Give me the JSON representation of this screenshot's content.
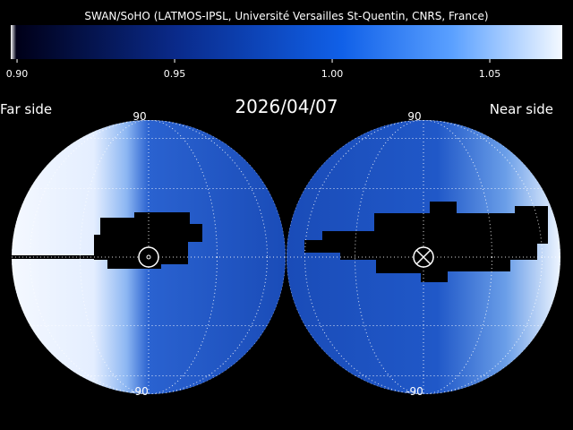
{
  "header": {
    "title": "SWAN/SoHO (LATMOS-IPSL, Université Versailles St-Quentin, CNRS, France)",
    "date": "2026/04/07"
  },
  "colorbar": {
    "range": [
      0.898,
      1.073
    ],
    "ticks": [
      {
        "value": 0.9,
        "label": "0.90"
      },
      {
        "value": 0.95,
        "label": "0.95"
      },
      {
        "value": 1.0,
        "label": "1.00"
      },
      {
        "value": 1.05,
        "label": "1.05"
      }
    ]
  },
  "maps": [
    {
      "label": "Far side",
      "top_label": "90",
      "bottom_label": "-90"
    },
    {
      "label": "Near side",
      "top_label": "90",
      "bottom_label": "-90"
    }
  ]
}
